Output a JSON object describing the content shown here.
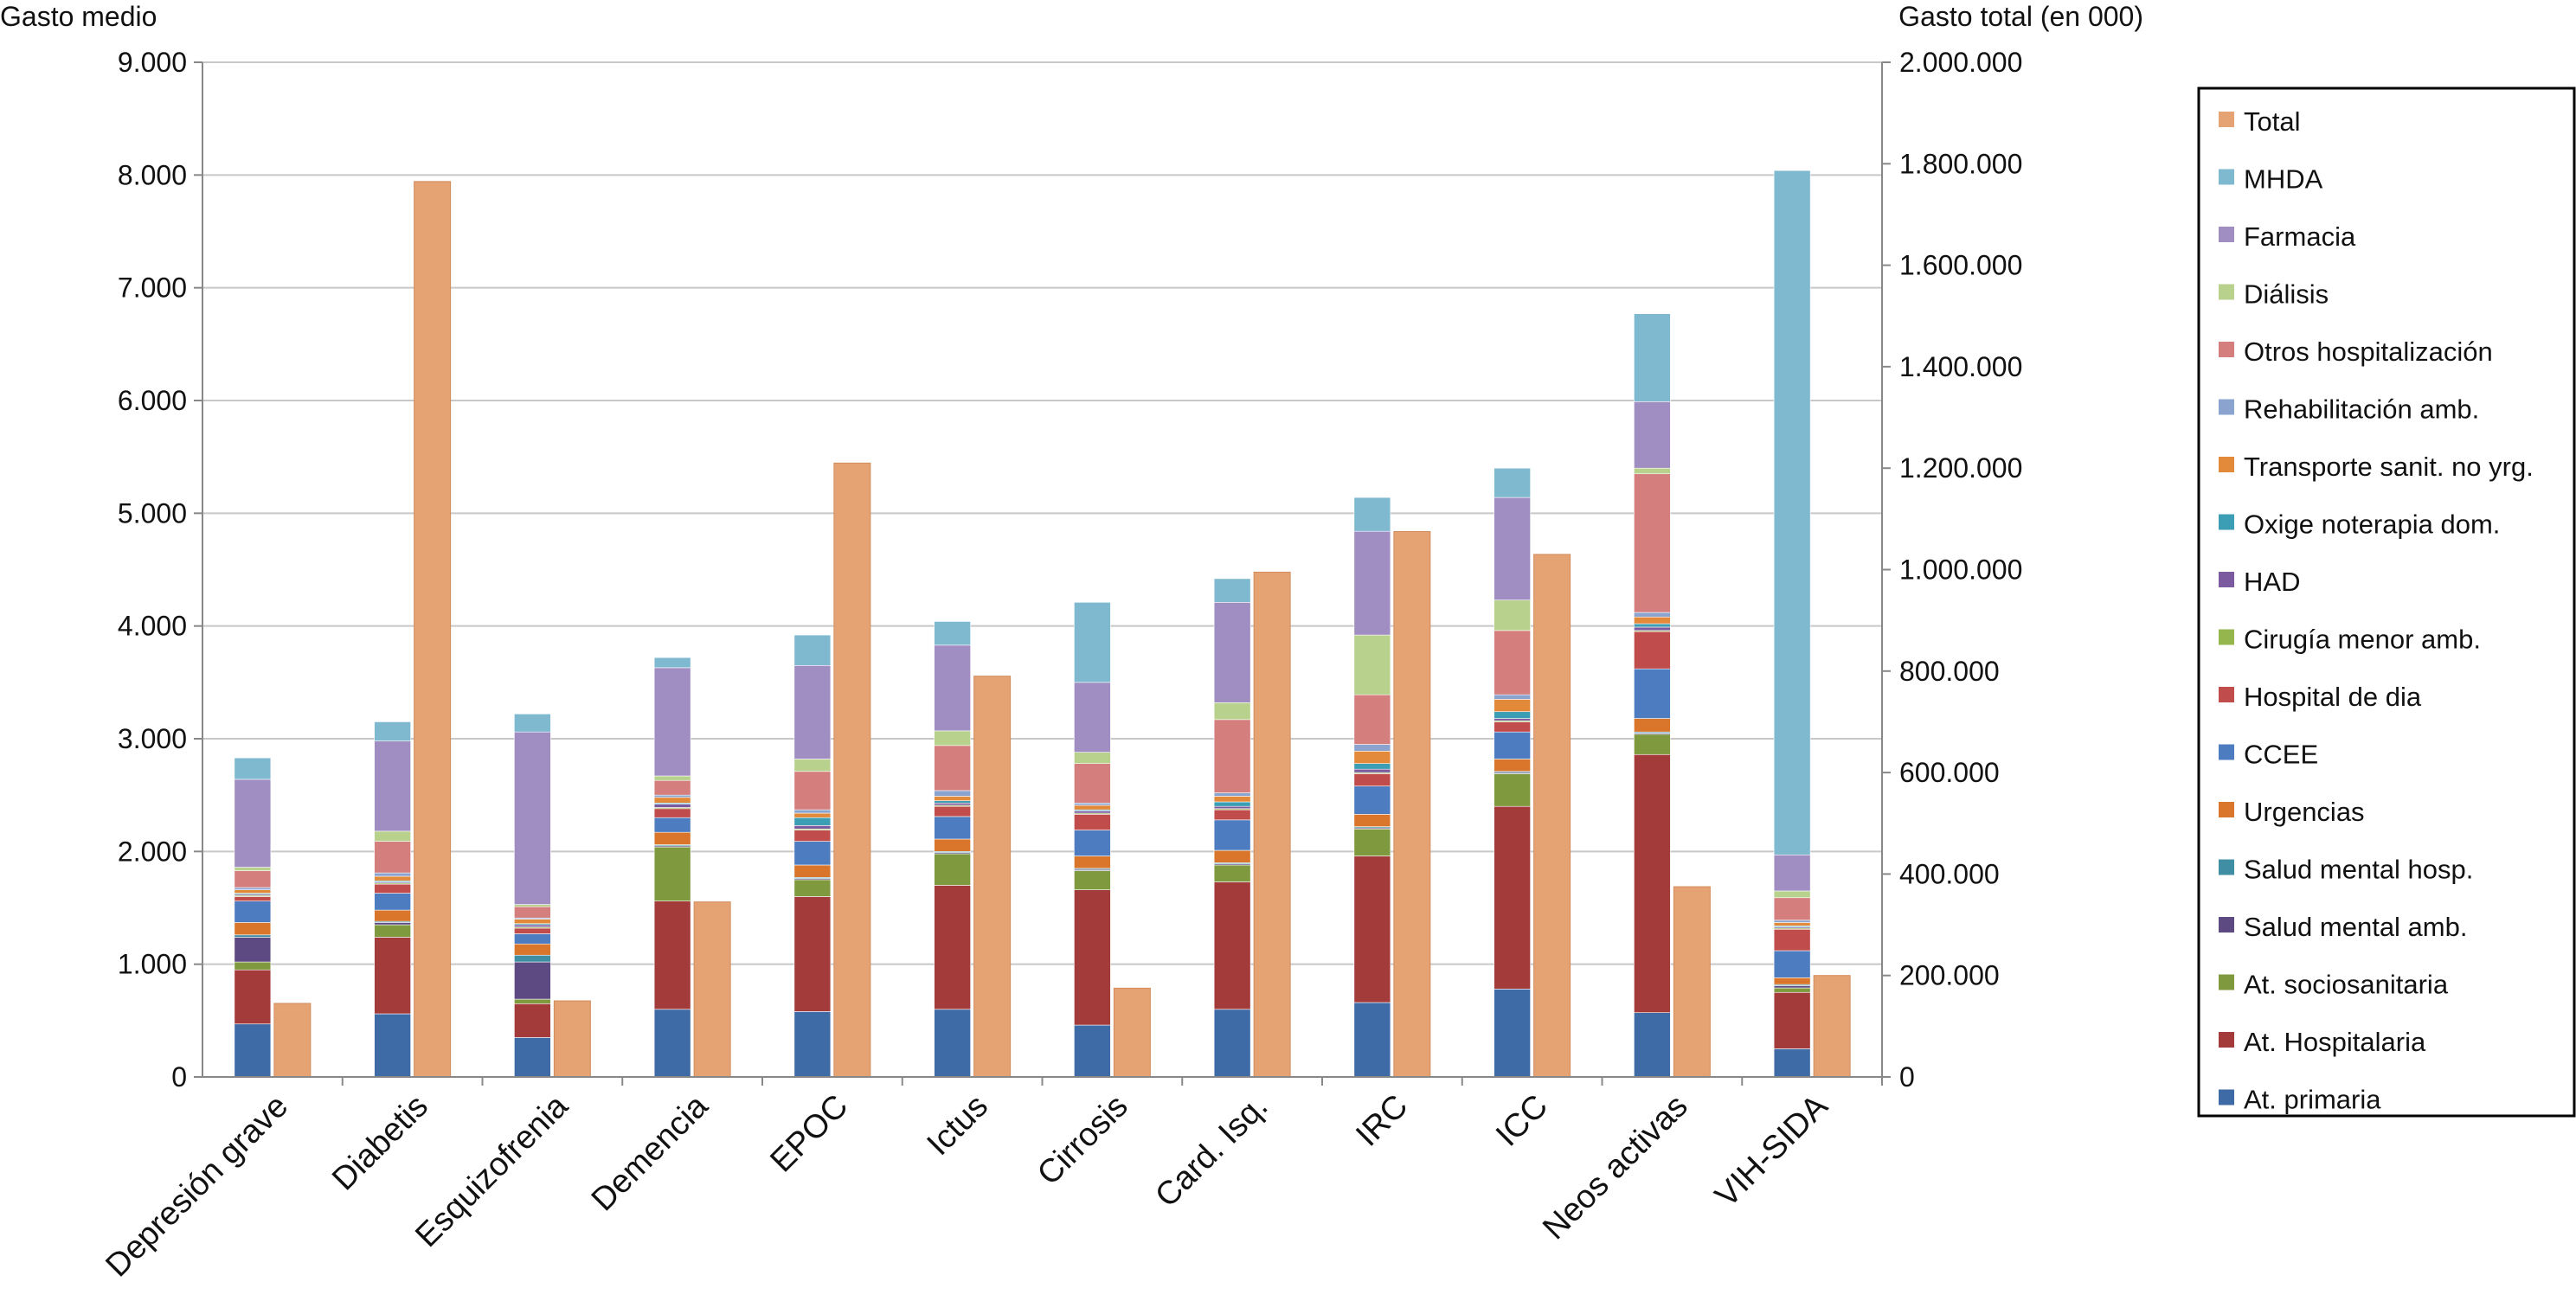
{
  "chart_data": {
    "type": "bar",
    "left_axis_title": "Gasto medio",
    "right_axis_title": "Gasto total (en 000)",
    "left_ylim": [
      0,
      9000
    ],
    "right_ylim": [
      0,
      2000000
    ],
    "left_ticks": [
      "0",
      "1.000",
      "2.000",
      "3.000",
      "4.000",
      "5.000",
      "6.000",
      "7.000",
      "8.000",
      "9.000"
    ],
    "right_ticks": [
      "0",
      "200.000",
      "400.000",
      "600.000",
      "800.000",
      "1.000.000",
      "1.200.000",
      "1.400.000",
      "1.600.000",
      "1.800.000",
      "2.000.000"
    ],
    "grid": "horizontal",
    "legend_position": "right",
    "categories": [
      "Depresión grave",
      "Diabetis",
      "Esquizofrenia",
      "Demencia",
      "EPOC",
      "Ictus",
      "Cirrosis",
      "Card. Isq.",
      "IRC",
      "ICC",
      "Neos activas",
      "VIH-SIDA"
    ],
    "stack_series": [
      {
        "name": "At. primaria",
        "color": "#3e6aa6",
        "values": [
          470,
          560,
          350,
          600,
          580,
          600,
          460,
          600,
          660,
          780,
          570,
          250
        ]
      },
      {
        "name": "At. Hospitalaria",
        "color": "#a33b3b",
        "values": [
          480,
          680,
          300,
          960,
          1020,
          1100,
          1200,
          1130,
          1300,
          1620,
          2290,
          500
        ]
      },
      {
        "name": "At. sociosanitaria",
        "color": "#7f9a3e",
        "values": [
          70,
          110,
          40,
          480,
          150,
          280,
          170,
          150,
          240,
          290,
          180,
          40
        ]
      },
      {
        "name": "Salud mental amb.",
        "color": "#5d4a82",
        "values": [
          220,
          20,
          330,
          10,
          10,
          10,
          10,
          10,
          10,
          10,
          10,
          20
        ]
      },
      {
        "name": "Salud mental hosp.",
        "color": "#3f8ea3",
        "values": [
          20,
          10,
          60,
          10,
          10,
          10,
          10,
          10,
          10,
          10,
          10,
          10
        ]
      },
      {
        "name": "Urgencias",
        "color": "#d9762c",
        "values": [
          110,
          100,
          100,
          110,
          110,
          110,
          110,
          110,
          110,
          110,
          120,
          60
        ]
      },
      {
        "name": "CCEE",
        "color": "#4d7cc0",
        "values": [
          190,
          150,
          90,
          130,
          210,
          200,
          230,
          270,
          250,
          240,
          440,
          240
        ]
      },
      {
        "name": "Hospital de dia",
        "color": "#c14c4c",
        "values": [
          40,
          80,
          50,
          80,
          100,
          90,
          140,
          90,
          110,
          90,
          330,
          190
        ]
      },
      {
        "name": "Cirugía menor amb.",
        "color": "#95b54d",
        "values": [
          10,
          10,
          10,
          10,
          10,
          10,
          10,
          10,
          10,
          10,
          10,
          10
        ]
      },
      {
        "name": "HAD",
        "color": "#7b5aa0",
        "values": [
          10,
          10,
          20,
          30,
          30,
          20,
          20,
          20,
          30,
          20,
          30,
          10
        ]
      },
      {
        "name": "Oxige noterapia dom.",
        "color": "#3c9eb4",
        "values": [
          10,
          10,
          10,
          10,
          70,
          20,
          10,
          40,
          50,
          60,
          30,
          10
        ]
      },
      {
        "name": "Transporte sanit. no yrg.",
        "color": "#e38a3a",
        "values": [
          30,
          40,
          40,
          50,
          40,
          40,
          40,
          50,
          110,
          110,
          60,
          30
        ]
      },
      {
        "name": "Rehabilitación amb.",
        "color": "#8aa4cf",
        "values": [
          20,
          30,
          10,
          20,
          30,
          50,
          20,
          30,
          60,
          40,
          40,
          20
        ]
      },
      {
        "name": "Otros hospitalización",
        "color": "#d47e7e",
        "values": [
          150,
          280,
          100,
          130,
          340,
          400,
          350,
          650,
          440,
          570,
          1230,
          200
        ]
      },
      {
        "name": "Diálisis",
        "color": "#b8d28d",
        "values": [
          30,
          90,
          20,
          40,
          110,
          130,
          100,
          150,
          530,
          270,
          50,
          60
        ]
      },
      {
        "name": "Farmacia",
        "color": "#a08dc2",
        "values": [
          780,
          800,
          1530,
          960,
          830,
          760,
          620,
          890,
          920,
          910,
          590,
          320
        ]
      },
      {
        "name": "MHDA",
        "color": "#7fb9d0",
        "values": [
          190,
          170,
          160,
          90,
          270,
          210,
          710,
          210,
          300,
          260,
          780,
          6070
        ]
      }
    ],
    "total_series": {
      "name": "Total",
      "color": "#e5a272",
      "values": [
        145000,
        1765000,
        150000,
        345000,
        1210000,
        790000,
        175000,
        995000,
        1075000,
        1030000,
        375000,
        200000
      ]
    },
    "legend": [
      "Total",
      "MHDA",
      "Farmacia",
      "Diálisis",
      "Otros hospitalización",
      "Rehabilitación amb.",
      "Transporte sanit. no yrg.",
      "Oxige noterapia dom.",
      "HAD",
      "Cirugía menor amb.",
      "Hospital de dia",
      "CCEE",
      "Urgencias",
      "Salud mental hosp.",
      "Salud mental amb.",
      "At. sociosanitaria",
      "At. Hospitalaria",
      "At. primaria"
    ]
  }
}
